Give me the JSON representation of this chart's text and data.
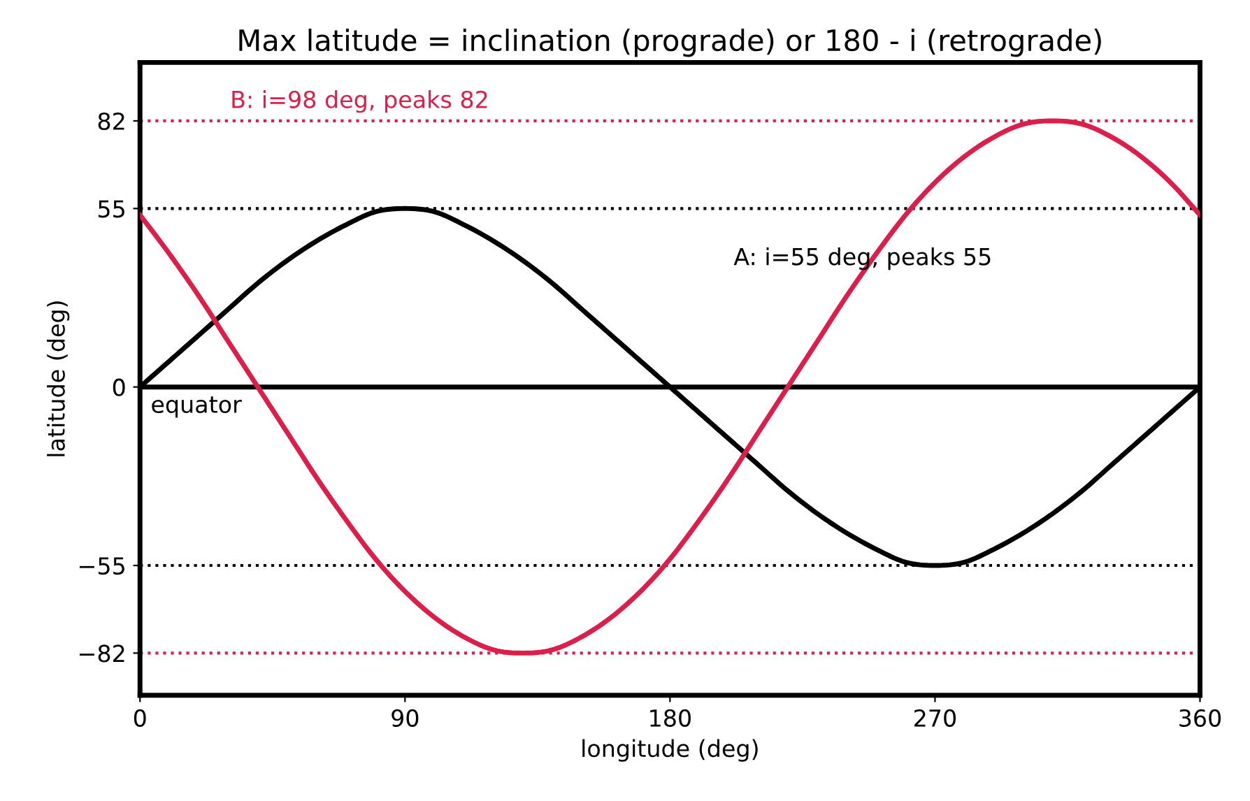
{
  "chart_data": {
    "type": "line",
    "title": "Max latitude = inclination (prograde) or 180 - i (retrograde)",
    "xlabel": "longitude (deg)",
    "ylabel": "latitude (deg)",
    "x": [
      0,
      10,
      20,
      30,
      40,
      50,
      60,
      70,
      80,
      90,
      100,
      110,
      120,
      130,
      140,
      150,
      160,
      170,
      180,
      190,
      200,
      210,
      220,
      230,
      240,
      250,
      260,
      270,
      280,
      290,
      300,
      310,
      320,
      330,
      340,
      350,
      360
    ],
    "series": [
      {
        "color": "#000000",
        "values": [
          0,
          8,
          16,
          24,
          32,
          39,
          45,
          50,
          54,
          55,
          54,
          50,
          45,
          39,
          32,
          24,
          16,
          8,
          0,
          -8,
          -16,
          -24,
          -32,
          -39,
          -45,
          -50,
          -54,
          -55,
          -54,
          -50,
          -45,
          -39,
          -32,
          -24,
          -16,
          -8,
          0
        ]
      },
      {
        "color": "#dc1e4a",
        "values": [
          53,
          41,
          28,
          14,
          0,
          -14,
          -28,
          -41,
          -53,
          -63,
          -71,
          -77,
          -81,
          -82,
          -81,
          -77,
          -71,
          -63,
          -53,
          -41,
          -28,
          -14,
          0,
          14,
          28,
          41,
          53,
          63,
          71,
          77,
          81,
          82,
          81,
          77,
          71,
          63,
          53
        ]
      }
    ],
    "xlim": [
      0,
      360
    ],
    "xticks": [
      0,
      90,
      180,
      270,
      360
    ],
    "ylim": [
      -95,
      100
    ],
    "yticks": [
      {
        "value": -82,
        "label": "−82"
      },
      {
        "value": -55,
        "label": "−55"
      },
      0,
      55,
      82
    ],
    "ref_lines": [
      {
        "axis": "y",
        "value": 82,
        "label": "B: i=98 deg, peaks 82",
        "color": "#dc1e4a",
        "line_style": "dotted"
      },
      {
        "axis": "y",
        "value": 55,
        "color": "#000000",
        "line_style": "dotted"
      },
      {
        "axis": "y",
        "value": 0,
        "label": "equator",
        "color": "#000000",
        "line_style": "solid"
      },
      {
        "axis": "y",
        "value": -55,
        "color": "#000000",
        "line_style": "dotted"
      },
      {
        "axis": "y",
        "value": -82,
        "color": "#dc1e4a",
        "line_style": "dotted"
      }
    ],
    "annotations": [
      "A: i=55 deg, peaks 55"
    ],
    "grid": false,
    "legend": false,
    "marker": "none",
    "line_style": "solid"
  }
}
